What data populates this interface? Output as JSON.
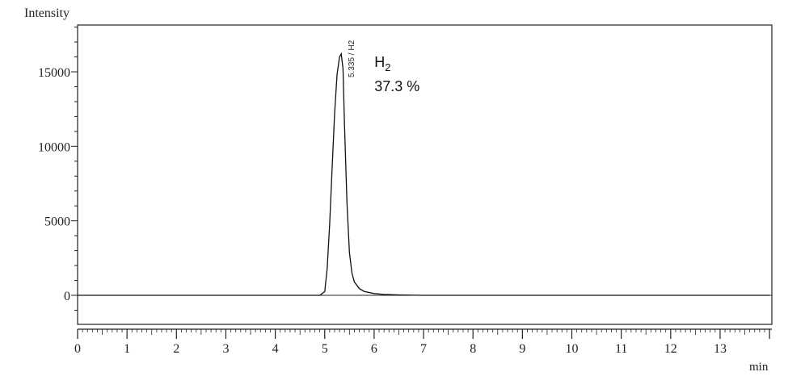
{
  "chart_data": {
    "type": "line",
    "ylabel": "Intensity",
    "xlabel": "min",
    "xlim": [
      0,
      14
    ],
    "ylim": [
      -1900,
      18200
    ],
    "x_ticks": [
      "0",
      "1",
      "2",
      "3",
      "4",
      "5",
      "6",
      "7",
      "8",
      "9",
      "10",
      "11",
      "12",
      "13"
    ],
    "y_ticks": [
      "15000",
      "10000",
      "5000",
      "0"
    ],
    "grid": false,
    "peak": {
      "retention_time": 5.335,
      "height": 16200,
      "label": "5.335 / H2",
      "compound": "H",
      "compound_subscript": "2",
      "area_percent": "37.3 %"
    },
    "series": [
      {
        "x": [
          0,
          4.9,
          5.0,
          5.05,
          5.1,
          5.15,
          5.2,
          5.25,
          5.3,
          5.335,
          5.37,
          5.4,
          5.45,
          5.5,
          5.55,
          5.6,
          5.7,
          5.8,
          6.0,
          6.2,
          6.5,
          7.0,
          14.0
        ],
        "values": [
          0,
          0,
          250,
          1800,
          4800,
          8500,
          12200,
          14800,
          16000,
          16200,
          15200,
          11500,
          6200,
          2900,
          1500,
          900,
          450,
          260,
          120,
          60,
          25,
          0,
          0
        ]
      }
    ]
  }
}
